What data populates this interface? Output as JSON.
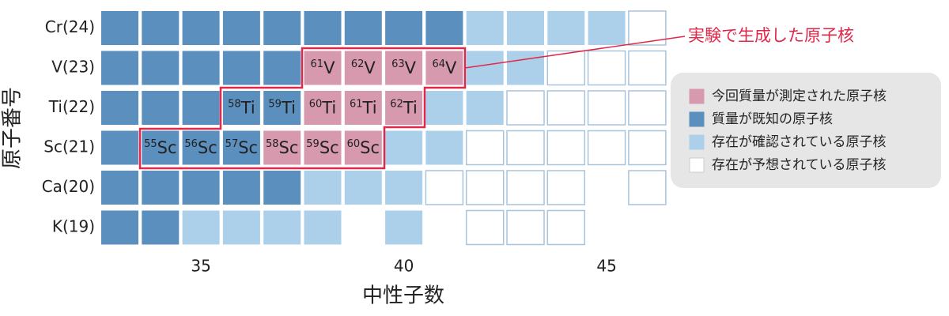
{
  "title_x": "中性子数",
  "title_y": "原子番号",
  "xticks": [
    35,
    40,
    45
  ],
  "annotation": "実験で生成した原子核",
  "legend": [
    {
      "label": "今回質量が測定された原子核",
      "color": "#d699ae"
    },
    {
      "label": "質量が既知の原子核",
      "color": "#5b8fbe"
    },
    {
      "label": "存在が確認されている原子核",
      "color": "#acd0ea"
    },
    {
      "label": "存在が予想されている原子核",
      "color": "#ffffff"
    }
  ],
  "rows": [
    {
      "label": "Cr(24)",
      "cells": [
        {
          "n": 33,
          "color": "#5b8fbe"
        },
        {
          "n": 34,
          "color": "#5b8fbe"
        },
        {
          "n": 35,
          "color": "#5b8fbe"
        },
        {
          "n": 36,
          "color": "#5b8fbe"
        },
        {
          "n": 37,
          "color": "#5b8fbe"
        },
        {
          "n": 38,
          "color": "#5b8fbe"
        },
        {
          "n": 39,
          "color": "#5b8fbe"
        },
        {
          "n": 40,
          "color": "#5b8fbe"
        },
        {
          "n": 41,
          "color": "#5b8fbe"
        },
        {
          "n": 42,
          "color": "#acd0ea"
        },
        {
          "n": 43,
          "color": "#acd0ea"
        },
        {
          "n": 44,
          "color": "#acd0ea"
        },
        {
          "n": 45,
          "color": "#acd0ea"
        },
        {
          "n": 46,
          "color": "#ffffff"
        }
      ]
    },
    {
      "label": "V(23)",
      "cells": [
        {
          "n": 33,
          "color": "#5b8fbe"
        },
        {
          "n": 34,
          "color": "#5b8fbe"
        },
        {
          "n": 35,
          "color": "#5b8fbe"
        },
        {
          "n": 36,
          "color": "#5b8fbe"
        },
        {
          "n": 37,
          "color": "#5b8fbe"
        },
        {
          "n": 38,
          "color": "#d699ae",
          "mass": "61",
          "symbol": "V"
        },
        {
          "n": 39,
          "color": "#d699ae",
          "mass": "62",
          "symbol": "V"
        },
        {
          "n": 40,
          "color": "#d699ae",
          "mass": "63",
          "symbol": "V"
        },
        {
          "n": 41,
          "color": "#d699ae",
          "mass": "64",
          "symbol": "V"
        },
        {
          "n": 42,
          "color": "#acd0ea"
        },
        {
          "n": 43,
          "color": "#acd0ea"
        },
        {
          "n": 44,
          "color": "#ffffff"
        },
        {
          "n": 45,
          "color": "#ffffff"
        },
        {
          "n": 46,
          "color": "#ffffff"
        }
      ]
    },
    {
      "label": "Ti(22)",
      "cells": [
        {
          "n": 33,
          "color": "#5b8fbe"
        },
        {
          "n": 34,
          "color": "#5b8fbe"
        },
        {
          "n": 35,
          "color": "#5b8fbe"
        },
        {
          "n": 36,
          "color": "#5b8fbe",
          "mass": "58",
          "symbol": "Ti"
        },
        {
          "n": 37,
          "color": "#5b8fbe",
          "mass": "59",
          "symbol": "Ti"
        },
        {
          "n": 38,
          "color": "#d699ae",
          "mass": "60",
          "symbol": "Ti"
        },
        {
          "n": 39,
          "color": "#d699ae",
          "mass": "61",
          "symbol": "Ti"
        },
        {
          "n": 40,
          "color": "#d699ae",
          "mass": "62",
          "symbol": "Ti"
        },
        {
          "n": 41,
          "color": "#acd0ea"
        },
        {
          "n": 42,
          "color": "#acd0ea"
        },
        {
          "n": 43,
          "color": "#ffffff"
        },
        {
          "n": 44,
          "color": "#ffffff"
        },
        {
          "n": 45,
          "color": "#ffffff"
        },
        {
          "n": 46,
          "color": "#ffffff"
        }
      ]
    },
    {
      "label": "Sc(21)",
      "cells": [
        {
          "n": 33,
          "color": "#5b8fbe"
        },
        {
          "n": 34,
          "color": "#5b8fbe",
          "mass": "55",
          "symbol": "Sc"
        },
        {
          "n": 35,
          "color": "#5b8fbe",
          "mass": "56",
          "symbol": "Sc"
        },
        {
          "n": 36,
          "color": "#5b8fbe",
          "mass": "57",
          "symbol": "Sc"
        },
        {
          "n": 37,
          "color": "#d699ae",
          "mass": "58",
          "symbol": "Sc"
        },
        {
          "n": 38,
          "color": "#d699ae",
          "mass": "59",
          "symbol": "Sc"
        },
        {
          "n": 39,
          "color": "#d699ae",
          "mass": "60",
          "symbol": "Sc"
        },
        {
          "n": 40,
          "color": "#acd0ea"
        },
        {
          "n": 41,
          "color": "#acd0ea"
        },
        {
          "n": 42,
          "color": "#ffffff"
        },
        {
          "n": 43,
          "color": "#ffffff"
        },
        {
          "n": 44,
          "color": "#ffffff"
        },
        {
          "n": 45,
          "color": "#ffffff"
        },
        {
          "n": 46,
          "color": "#ffffff"
        }
      ]
    },
    {
      "label": "Ca(20)",
      "cells": [
        {
          "n": 33,
          "color": "#5b8fbe"
        },
        {
          "n": 34,
          "color": "#5b8fbe"
        },
        {
          "n": 35,
          "color": "#5b8fbe"
        },
        {
          "n": 36,
          "color": "#5b8fbe"
        },
        {
          "n": 37,
          "color": "#5b8fbe"
        },
        {
          "n": 38,
          "color": "#acd0ea"
        },
        {
          "n": 39,
          "color": "#acd0ea"
        },
        {
          "n": 40,
          "color": "#acd0ea"
        },
        {
          "n": 41,
          "color": "#ffffff"
        },
        {
          "n": 42,
          "color": "#ffffff"
        },
        {
          "n": 43,
          "color": "#ffffff"
        },
        {
          "n": 44,
          "color": "#ffffff"
        },
        {
          "n": 46,
          "color": "#ffffff"
        }
      ]
    },
    {
      "label": "K(19)",
      "cells": [
        {
          "n": 33,
          "color": "#5b8fbe"
        },
        {
          "n": 34,
          "color": "#5b8fbe"
        },
        {
          "n": 35,
          "color": "#acd0ea"
        },
        {
          "n": 36,
          "color": "#acd0ea"
        },
        {
          "n": 37,
          "color": "#acd0ea"
        },
        {
          "n": 38,
          "color": "#acd0ea"
        },
        {
          "n": 40,
          "color": "#acd0ea"
        },
        {
          "n": 42,
          "color": "#ffffff"
        },
        {
          "n": 43,
          "color": "#ffffff"
        },
        {
          "n": 44,
          "color": "#ffffff"
        }
      ]
    }
  ]
}
